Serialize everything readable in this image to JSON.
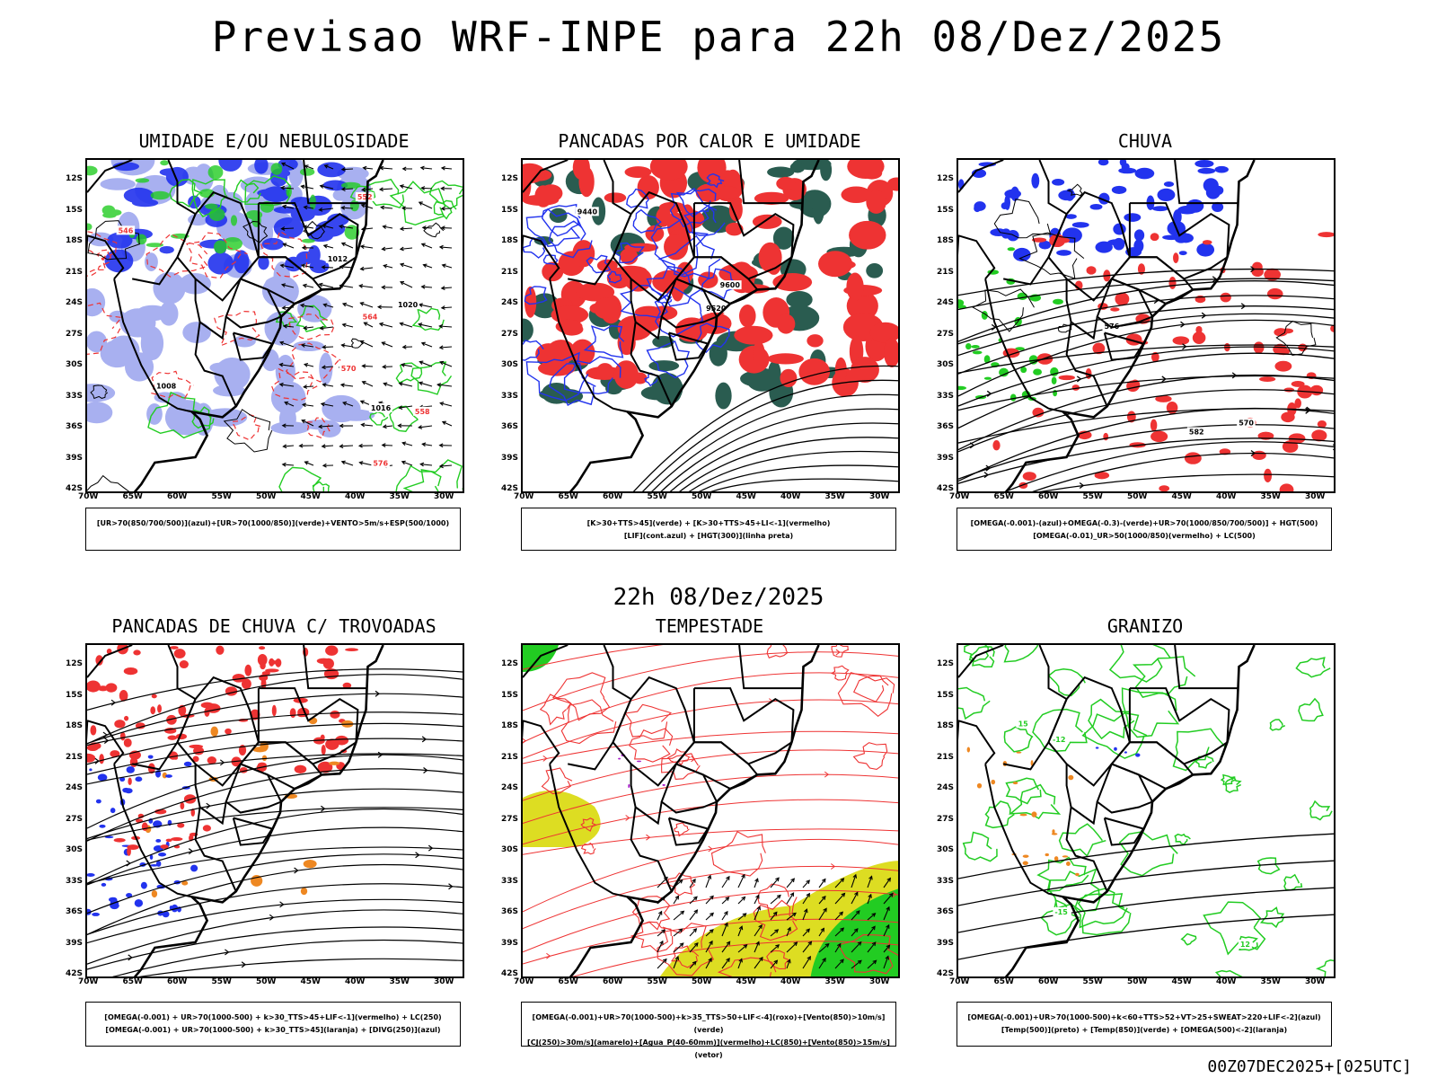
{
  "header": {
    "title": "Previsao WRF-INPE  para 22h 08/Dez/2025",
    "mid_label": "22h 08/Dez/2025",
    "footer": "00Z07DEC2025+[025UTC]"
  },
  "colors": {
    "blue": "#2233ee",
    "light_blue": "#9aa3ee",
    "green": "#22cc22",
    "red": "#ee3333",
    "orange": "#ee8822",
    "yellow": "#dddd22",
    "dark_teal": "#2a5c50",
    "purple": "#aa22cc",
    "black": "#000000"
  },
  "axes": {
    "lat_ticks": [
      "12S",
      "15S",
      "18S",
      "21S",
      "24S",
      "27S",
      "30S",
      "33S",
      "36S",
      "39S",
      "42S"
    ],
    "lon_ticks": [
      "70W",
      "65W",
      "60W",
      "55W",
      "50W",
      "45W",
      "40W",
      "35W",
      "30W"
    ]
  },
  "chart_data": [
    {
      "type": "heatmap",
      "title": "UMIDADE E/OU NEBULOSIDADE",
      "legend": [
        "[UR>70(850/700/500)](azul)+[UR>70(1000/850)](verde)+VENTO>5m/s+ESP(500/1000)"
      ],
      "contour_labels": [
        "1008",
        "1012",
        "1016",
        "1020",
        "570",
        "576",
        "564",
        "558",
        "552",
        "546"
      ],
      "lat_range": [
        -42,
        -11
      ],
      "lon_range": [
        -70,
        -28
      ]
    },
    {
      "type": "heatmap",
      "title": "PANCADAS POR CALOR E UMIDADE",
      "legend": [
        "[K>30+TTS>45](verde) + [K>30+TTS>45+LI<-1](vermelho)",
        "[LIF](cont.azul) + [HGT(300)](linha preta)"
      ],
      "contour_labels": [
        "9600",
        "9520",
        "9440"
      ],
      "lat_range": [
        -42,
        -11
      ],
      "lon_range": [
        -70,
        -28
      ]
    },
    {
      "type": "heatmap",
      "title": "CHUVA",
      "legend": [
        "[OMEGA(-0.001)-(azul)+OMEGA(-0.3)-(verde)+UR>70(1000/850/700/500)] + HGT(500)",
        "[OMEGA(-0.01)_UR>50(1000/850)(vermelho) + LC(500)"
      ],
      "contour_labels": [
        "582",
        "576",
        "570"
      ],
      "lat_range": [
        -42,
        -11
      ],
      "lon_range": [
        -70,
        -28
      ]
    },
    {
      "type": "heatmap",
      "title": "PANCADAS DE CHUVA C/ TROVOADAS",
      "legend": [
        "[OMEGA(-0.001) + UR>70(1000-500) + k>30_TTS>45+LIF<-1](vermelho) + LC(250)",
        "[OMEGA(-0.001) + UR>70(1000-500) + k>30_TTS>45](laranja) + [DIVG(250)](azul)"
      ],
      "contour_labels": [],
      "lat_range": [
        -42,
        -11
      ],
      "lon_range": [
        -70,
        -28
      ]
    },
    {
      "type": "heatmap",
      "title": "TEMPESTADE",
      "legend": [
        "[OMEGA(-0.001)+UR>70(1000-500)+k>35_TTS>50+LIF<-4](roxo)+[Vento(850)>10m/s](verde)",
        "[CJ(250)>30m/s](amarelo)+[Agua_P(40-60mm)](vermelho)+LC(850)+[Vento(850)>15m/s](vetor)"
      ],
      "contour_labels": [],
      "lat_range": [
        -42,
        -11
      ],
      "lon_range": [
        -70,
        -28
      ]
    },
    {
      "type": "heatmap",
      "title": "GRANIZO",
      "legend": [
        "[OMEGA(-0.001)+UR>70(1000-500)+k<60+TTS>52+VT>25+SWEAT>220+LIF<-2](azul)",
        "[Temp(500)](preto) + [Temp(850)](verde) + [OMEGA(500)<-2](laranja)"
      ],
      "contour_labels": [
        "15",
        "12",
        "-15",
        "-12"
      ],
      "lat_range": [
        -42,
        -11
      ],
      "lon_range": [
        -70,
        -28
      ]
    }
  ]
}
